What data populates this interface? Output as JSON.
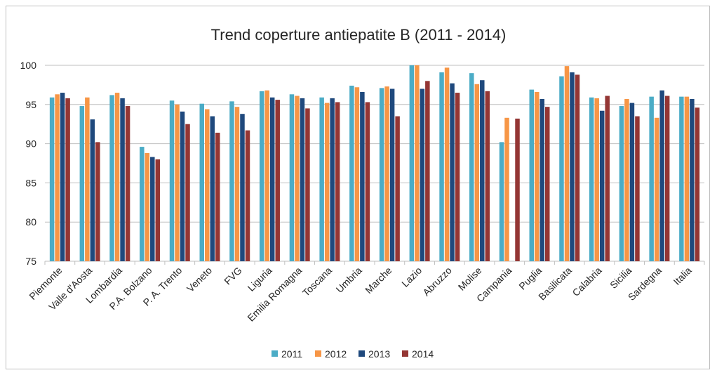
{
  "chart_data": {
    "type": "bar",
    "title": "Trend coperture antiepatite B (2011 - 2014)",
    "xlabel": "",
    "ylabel": "",
    "ylim": [
      75,
      100
    ],
    "yticks": [
      "75",
      "80",
      "85",
      "90",
      "95",
      "100"
    ],
    "grid": true,
    "legend_position": "bottom",
    "categories": [
      "Piemonte",
      "Valle d'Aosta",
      "Lombardia",
      "P.A. Bolzano",
      "P. A. Trento",
      "Veneto",
      "FVG",
      "Liguria",
      "Emilia Romagna",
      "Toscana",
      "Umbria",
      "Marche",
      "Lazio",
      "Abruzzo",
      "Molise",
      "Campania",
      "Puglia",
      "Basilicata",
      "Calabria",
      "Sicilia",
      "Sardegna",
      "Italia"
    ],
    "series": [
      {
        "name": "2011",
        "color": "#4bacc6",
        "values": [
          95.9,
          94.8,
          96.2,
          89.6,
          95.5,
          95.1,
          95.4,
          96.7,
          96.3,
          95.9,
          97.4,
          97.1,
          100.0,
          99.1,
          99.0,
          90.2,
          96.9,
          98.6,
          95.9,
          94.8,
          96.0,
          96.0
        ]
      },
      {
        "name": "2012",
        "color": "#f79646",
        "values": [
          96.3,
          95.9,
          96.5,
          88.8,
          95.0,
          94.4,
          94.7,
          96.8,
          96.1,
          95.2,
          97.2,
          97.3,
          100.0,
          99.7,
          97.6,
          93.3,
          96.6,
          99.9,
          95.8,
          95.7,
          93.3,
          96.0
        ]
      },
      {
        "name": "2013",
        "color": "#1f497d",
        "values": [
          96.5,
          93.1,
          95.8,
          88.3,
          94.1,
          93.5,
          93.8,
          95.9,
          95.8,
          95.8,
          96.6,
          97.0,
          97.0,
          97.7,
          98.1,
          75.0,
          95.7,
          99.1,
          94.2,
          95.2,
          96.8,
          95.7
        ]
      },
      {
        "name": "2014",
        "color": "#943634",
        "values": [
          95.8,
          90.2,
          94.8,
          88.0,
          92.5,
          91.4,
          91.7,
          95.6,
          94.5,
          95.3,
          95.3,
          93.5,
          98.0,
          96.5,
          96.7,
          93.2,
          94.7,
          98.8,
          96.1,
          93.5,
          96.1,
          94.6
        ]
      }
    ]
  }
}
